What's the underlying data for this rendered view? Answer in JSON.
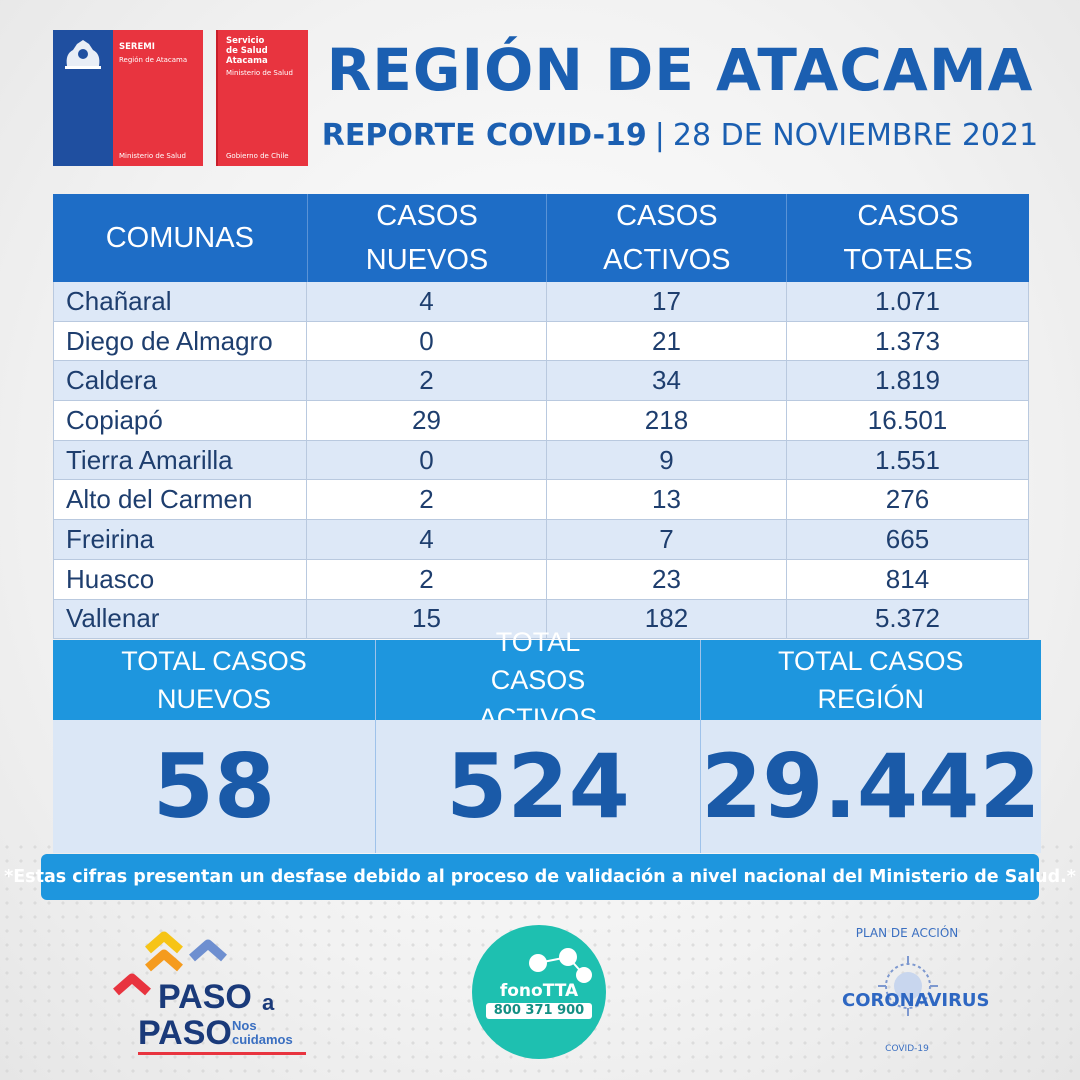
{
  "logos": {
    "seremi": {
      "line1": "SEREMI",
      "line2": "Región de Atacama",
      "footer": "Ministerio de Salud"
    },
    "servicio": {
      "line1": "Servicio",
      "line2": "de Salud",
      "line3": "Atacama",
      "line4": "Ministerio de Salud",
      "footer": "Gobierno de Chile"
    }
  },
  "header": {
    "title": "REGIÓN DE ATACAMA",
    "report": "REPORTE COVID-19",
    "separator": "|",
    "date": "28 DE NOVIEMBRE 2021"
  },
  "table": {
    "headers": [
      "COMUNAS",
      "CASOS NUEVOS",
      "CASOS ACTIVOS",
      "CASOS TOTALES"
    ],
    "rows": [
      [
        "Chañaral",
        "4",
        "17",
        "1.071"
      ],
      [
        "Diego de Almagro",
        "0",
        "21",
        "1.373"
      ],
      [
        "Caldera",
        "2",
        "34",
        "1.819"
      ],
      [
        "Copiapó",
        "29",
        "218",
        "16.501"
      ],
      [
        "Tierra Amarilla",
        "0",
        "9",
        "1.551"
      ],
      [
        "Alto del Carmen",
        "2",
        "13",
        "276"
      ],
      [
        "Freirina",
        "4",
        "7",
        "665"
      ],
      [
        "Huasco",
        "2",
        "23",
        "814"
      ],
      [
        "Vallenar",
        "15",
        "182",
        "5.372"
      ]
    ]
  },
  "totals": [
    {
      "label": "TOTAL CASOS NUEVOS",
      "value": "58"
    },
    {
      "label": "TOTAL CASOS ACTIVOS",
      "value": "524"
    },
    {
      "label": "TOTAL CASOS REGIÓN",
      "value": "29.442"
    }
  ],
  "note": "*Estas cifras presentan un desfase debido al proceso de validación a nivel nacional del Ministerio de Salud.*",
  "footer_logos": {
    "paso": {
      "w1": "PASO",
      "a": "a",
      "w2": "PASO",
      "tag1": "Nos",
      "tag2": "cuidamos"
    },
    "fono": {
      "name": "fonoTTA",
      "number": "800 371 900"
    },
    "corona": {
      "top": "PLAN DE ACCIÓN",
      "main": "CORONAVIRUS",
      "bottom": "COVID-19"
    }
  },
  "colors": {
    "brand_blue": "#1b5fb1",
    "header_blue": "#1e6dc6",
    "accent_cyan": "#1e96de",
    "gov_red": "#e8343f",
    "fono_teal": "#1ec0b0"
  }
}
